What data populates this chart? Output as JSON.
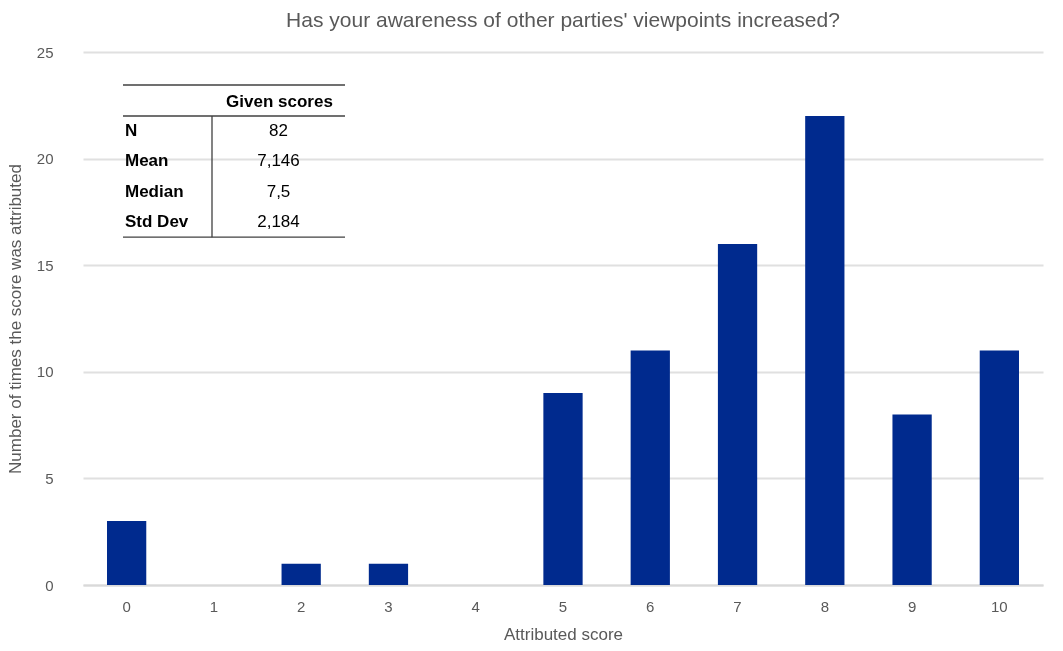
{
  "chart_data": {
    "type": "bar",
    "title": "Has your awareness of other parties' viewpoints increased?",
    "xlabel": "Attributed score",
    "ylabel": "Number of times the score was attributed",
    "categories": [
      "0",
      "1",
      "2",
      "3",
      "4",
      "5",
      "6",
      "7",
      "8",
      "9",
      "10"
    ],
    "values": [
      3,
      0,
      1,
      1,
      0,
      9,
      11,
      16,
      22,
      8,
      11
    ],
    "color": "#002a8e",
    "ylim": [
      0,
      25
    ],
    "yticks": [
      0,
      5,
      10,
      15,
      20,
      25
    ],
    "grid": "y",
    "annotations": [
      "Given scores",
      "N",
      "82",
      "Mean",
      "7,146",
      "Median",
      "7,5",
      "Std Dev",
      "2,184"
    ]
  }
}
